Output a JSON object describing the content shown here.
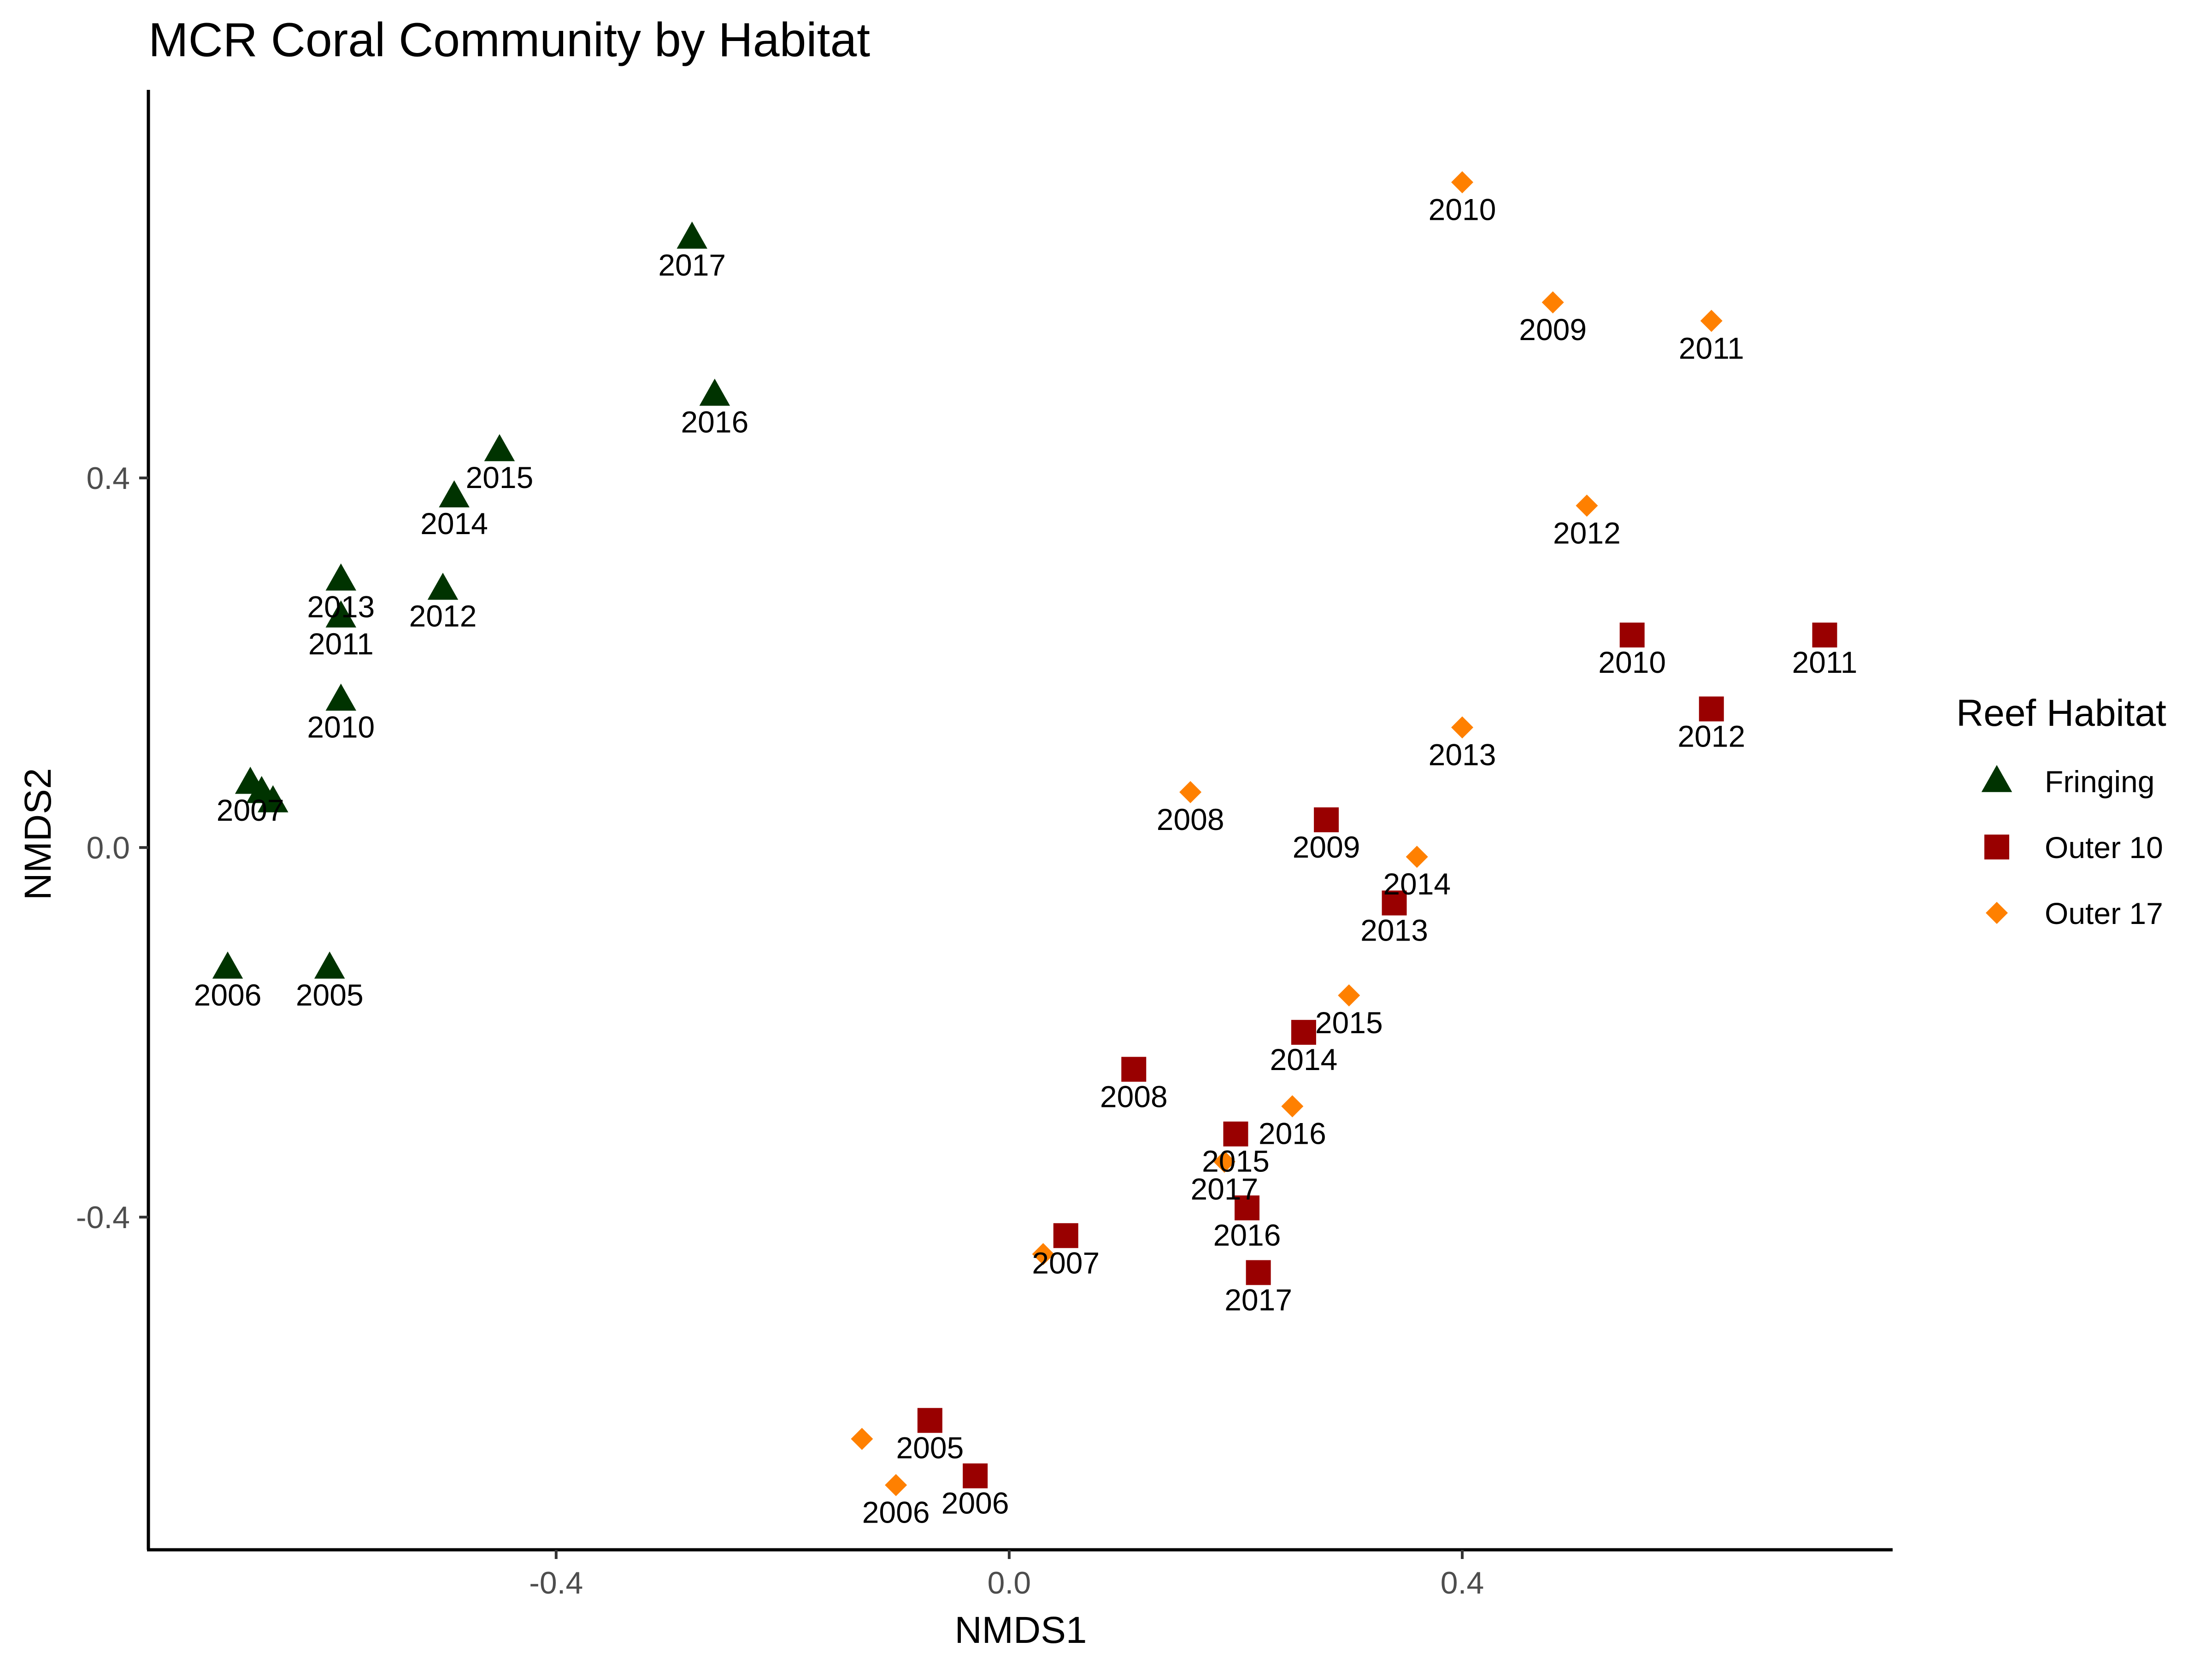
{
  "chart_data": {
    "type": "scatter",
    "title": "MCR Coral Community by Habitat",
    "xlabel": "NMDS1",
    "ylabel": "NMDS2",
    "xlim": [
      -0.76,
      0.78
    ],
    "ylim": [
      -0.76,
      0.82
    ],
    "xticks": [
      {
        "value": -0.4,
        "label": "-0.4"
      },
      {
        "value": 0.0,
        "label": "0.0"
      },
      {
        "value": 0.4,
        "label": "0.4"
      }
    ],
    "yticks": [
      {
        "value": -0.4,
        "label": "-0.4"
      },
      {
        "value": 0.0,
        "label": "0.0"
      },
      {
        "value": 0.4,
        "label": "0.4"
      }
    ],
    "grid": false,
    "legend": {
      "title": "Reef Habitat",
      "position": "right"
    },
    "series": [
      {
        "name": "Fringing",
        "shape": "triangle",
        "color": "#003300",
        "points": [
          {
            "x": -0.6,
            "y": -0.13,
            "label": "2005"
          },
          {
            "x": -0.69,
            "y": -0.13,
            "label": "2006"
          },
          {
            "x": -0.67,
            "y": 0.07,
            "label": "2007"
          },
          {
            "x": -0.66,
            "y": 0.06,
            "label": ""
          },
          {
            "x": -0.65,
            "y": 0.05,
            "label": ""
          },
          {
            "x": -0.59,
            "y": 0.16,
            "label": "2010"
          },
          {
            "x": -0.59,
            "y": 0.25,
            "label": "2011"
          },
          {
            "x": -0.5,
            "y": 0.28,
            "label": "2012"
          },
          {
            "x": -0.59,
            "y": 0.29,
            "label": "2013"
          },
          {
            "x": -0.49,
            "y": 0.38,
            "label": "2014"
          },
          {
            "x": -0.45,
            "y": 0.43,
            "label": "2015"
          },
          {
            "x": -0.26,
            "y": 0.49,
            "label": "2016"
          },
          {
            "x": -0.28,
            "y": 0.66,
            "label": "2017"
          }
        ]
      },
      {
        "name": "Outer 10",
        "shape": "square",
        "color": "#990000",
        "points": [
          {
            "x": -0.07,
            "y": -0.62,
            "label": "2005"
          },
          {
            "x": -0.03,
            "y": -0.68,
            "label": "2006"
          },
          {
            "x": 0.05,
            "y": -0.42,
            "label": "2007"
          },
          {
            "x": 0.11,
            "y": -0.24,
            "label": "2008"
          },
          {
            "x": 0.28,
            "y": 0.03,
            "label": "2009"
          },
          {
            "x": 0.55,
            "y": 0.23,
            "label": "2010"
          },
          {
            "x": 0.72,
            "y": 0.23,
            "label": "2011"
          },
          {
            "x": 0.62,
            "y": 0.15,
            "label": "2012"
          },
          {
            "x": 0.34,
            "y": -0.06,
            "label": "2013"
          },
          {
            "x": 0.26,
            "y": -0.2,
            "label": "2014"
          },
          {
            "x": 0.2,
            "y": -0.31,
            "label": "2015"
          },
          {
            "x": 0.21,
            "y": -0.39,
            "label": "2016"
          },
          {
            "x": 0.22,
            "y": -0.46,
            "label": "2017"
          }
        ]
      },
      {
        "name": "Outer 17",
        "shape": "diamond",
        "color": "#ff8000",
        "points": [
          {
            "x": -0.13,
            "y": -0.64,
            "label": ""
          },
          {
            "x": -0.1,
            "y": -0.69,
            "label": "2006"
          },
          {
            "x": 0.03,
            "y": -0.44,
            "label": ""
          },
          {
            "x": 0.16,
            "y": 0.06,
            "label": "2008"
          },
          {
            "x": 0.48,
            "y": 0.59,
            "label": "2009"
          },
          {
            "x": 0.4,
            "y": 0.72,
            "label": "2010"
          },
          {
            "x": 0.62,
            "y": 0.57,
            "label": "2011"
          },
          {
            "x": 0.51,
            "y": 0.37,
            "label": "2012"
          },
          {
            "x": 0.4,
            "y": 0.13,
            "label": "2013"
          },
          {
            "x": 0.36,
            "y": -0.01,
            "label": "2014"
          },
          {
            "x": 0.3,
            "y": -0.16,
            "label": "2015"
          },
          {
            "x": 0.25,
            "y": -0.28,
            "label": "2016"
          },
          {
            "x": 0.19,
            "y": -0.34,
            "label": "2017"
          }
        ]
      }
    ]
  }
}
